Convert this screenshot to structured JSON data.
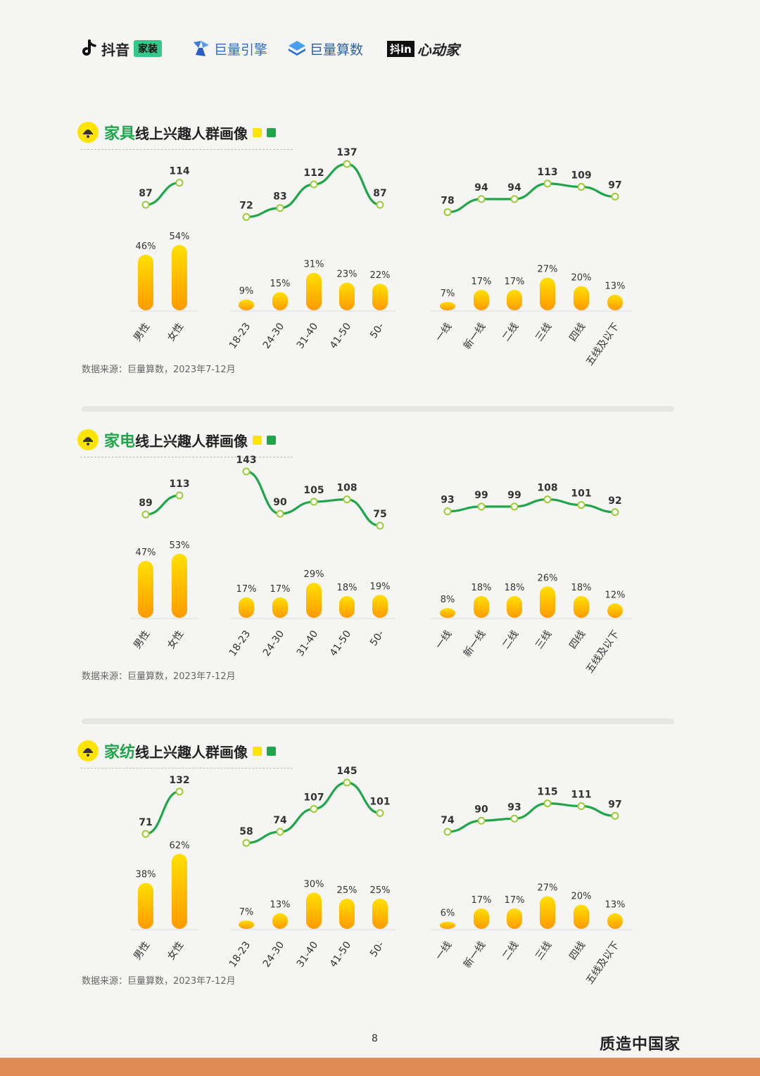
{
  "header": {
    "logo_douyin": "抖音",
    "logo_douyin_badge": "家装",
    "logo_juliang": "巨量引擎",
    "logo_suanshu": "巨量算数",
    "logo_xindong_box": "抖in",
    "logo_xindong": "心动家"
  },
  "sections": [
    {
      "title_highlight": "家具",
      "title_rest": "线上兴趣人群画像",
      "source": "数据来源：巨量算数，2023年7-12月"
    },
    {
      "title_highlight": "家电",
      "title_rest": "线上兴趣人群画像",
      "source": "数据来源：巨量算数，2023年7-12月"
    },
    {
      "title_highlight": "家纺",
      "title_rest": "线上兴趣人群画像",
      "source": "数据来源：巨量算数，2023年7-12月"
    }
  ],
  "colors": {
    "accent_green": "#1fa64a",
    "bar_top": "#ffe000",
    "bar_bottom": "#ff9a00",
    "line": "#1fa64a",
    "legend_yellow": "#ffe400",
    "legend_green": "#1fa64a"
  },
  "chart_data": [
    {
      "type": "bar+line",
      "groups": [
        {
          "categories": [
            "男性",
            "女性"
          ],
          "share": [
            "46%",
            "54%"
          ],
          "share_values": [
            46,
            54
          ],
          "index": [
            87,
            114
          ]
        },
        {
          "categories": [
            "18-23",
            "24-30",
            "31-40",
            "41-50",
            "50-"
          ],
          "share": [
            "9%",
            "15%",
            "31%",
            "23%",
            "22%"
          ],
          "share_values": [
            9,
            15,
            31,
            23,
            22
          ],
          "index": [
            72,
            83,
            112,
            137,
            87
          ]
        },
        {
          "categories": [
            "一线",
            "新一线",
            "二线",
            "三线",
            "四线",
            "五线及以下"
          ],
          "share": [
            "7%",
            "17%",
            "17%",
            "27%",
            "20%",
            "13%"
          ],
          "share_values": [
            7,
            17,
            17,
            27,
            20,
            13
          ],
          "index": [
            78,
            94,
            94,
            113,
            109,
            97
          ]
        }
      ]
    },
    {
      "type": "bar+line",
      "groups": [
        {
          "categories": [
            "男性",
            "女性"
          ],
          "share": [
            "47%",
            "53%"
          ],
          "share_values": [
            47,
            53
          ],
          "index": [
            89,
            113
          ]
        },
        {
          "categories": [
            "18-23",
            "24-30",
            "31-40",
            "41-50",
            "50-"
          ],
          "share": [
            "17%",
            "17%",
            "29%",
            "18%",
            "19%"
          ],
          "share_values": [
            17,
            17,
            29,
            18,
            19
          ],
          "index": [
            143,
            90,
            105,
            108,
            75
          ]
        },
        {
          "categories": [
            "一线",
            "新一线",
            "二线",
            "三线",
            "四线",
            "五线及以下"
          ],
          "share": [
            "8%",
            "18%",
            "18%",
            "26%",
            "18%",
            "12%"
          ],
          "share_values": [
            8,
            18,
            18,
            26,
            18,
            12
          ],
          "index": [
            93,
            99,
            99,
            108,
            101,
            92
          ]
        }
      ]
    },
    {
      "type": "bar+line",
      "groups": [
        {
          "categories": [
            "男性",
            "女性"
          ],
          "share": [
            "38%",
            "62%"
          ],
          "share_values": [
            38,
            62
          ],
          "index": [
            71,
            132
          ]
        },
        {
          "categories": [
            "18-23",
            "24-30",
            "31-40",
            "41-50",
            "50-"
          ],
          "share": [
            "7%",
            "13%",
            "30%",
            "25%",
            "25%"
          ],
          "share_values": [
            7,
            13,
            30,
            25,
            25
          ],
          "index": [
            58,
            74,
            107,
            145,
            101
          ]
        },
        {
          "categories": [
            "一线",
            "新一线",
            "二线",
            "三线",
            "四线",
            "五线及以下"
          ],
          "share": [
            "6%",
            "17%",
            "17%",
            "27%",
            "20%",
            "13%"
          ],
          "share_values": [
            6,
            17,
            17,
            27,
            20,
            13
          ],
          "index": [
            74,
            90,
            93,
            115,
            111,
            97
          ]
        }
      ]
    }
  ],
  "footer": {
    "page_number": "8",
    "brand": "质造中国家"
  }
}
